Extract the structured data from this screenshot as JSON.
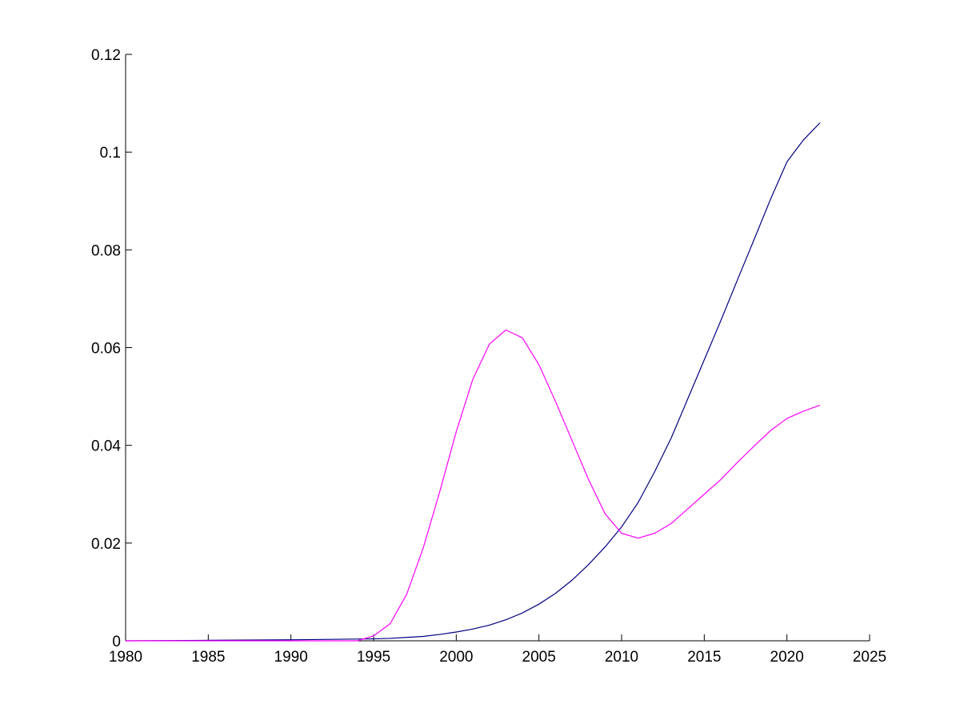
{
  "chart_data": {
    "type": "line",
    "title": "",
    "xlabel": "",
    "ylabel": "",
    "xlim": [
      1980,
      2025
    ],
    "ylim": [
      0,
      0.12
    ],
    "grid": false,
    "legend": "none",
    "x_ticks": [
      1980,
      1985,
      1990,
      1995,
      2000,
      2005,
      2010,
      2015,
      2020,
      2025
    ],
    "x_tick_labels": [
      "1980",
      "1985",
      "1990",
      "1995",
      "2000",
      "2005",
      "2010",
      "2015",
      "2020",
      "2025"
    ],
    "y_ticks": [
      0,
      0.02,
      0.04,
      0.06,
      0.08,
      0.1,
      0.12
    ],
    "y_tick_labels": [
      "0",
      "0.02",
      "0.04",
      "0.06",
      "0.08",
      "0.1",
      "0.12"
    ],
    "series": [
      {
        "color": "#000080",
        "x": [
          1980,
          1985,
          1990,
          1995,
          1996,
          1997,
          1998,
          1999,
          2000,
          2001,
          2002,
          2003,
          2004,
          2005,
          2006,
          2007,
          2008,
          2009,
          2010,
          2011,
          2012,
          2013,
          2014,
          2015,
          2016,
          2017,
          2018,
          2019,
          2020,
          2021,
          2022
        ],
        "y": [
          0,
          0.0001,
          0.0002,
          0.0004,
          0.0005,
          0.0007,
          0.0009,
          0.0013,
          0.0018,
          0.0024,
          0.0032,
          0.0043,
          0.0057,
          0.0075,
          0.0097,
          0.0124,
          0.0156,
          0.0192,
          0.0233,
          0.0283,
          0.0346,
          0.0415,
          0.0495,
          0.0575,
          0.0655,
          0.0738,
          0.082,
          0.0903,
          0.098,
          0.1025,
          0.106
        ]
      },
      {
        "color": "#FF00FF",
        "x": [
          1980,
          1985,
          1990,
          1994,
          1995,
          1996,
          1997,
          1998,
          1999,
          2000,
          2001,
          2002,
          2003,
          2004,
          2005,
          2006,
          2007,
          2008,
          2009,
          2010,
          2011,
          2012,
          2013,
          2014,
          2015,
          2016,
          2017,
          2018,
          2019,
          2020,
          2021,
          2022
        ],
        "y": [
          0,
          0,
          0,
          0,
          0.001,
          0.0035,
          0.0095,
          0.019,
          0.0305,
          0.0428,
          0.0535,
          0.0607,
          0.0636,
          0.062,
          0.0565,
          0.049,
          0.041,
          0.033,
          0.026,
          0.022,
          0.021,
          0.022,
          0.024,
          0.027,
          0.03,
          0.033,
          0.0365,
          0.0398,
          0.043,
          0.0455,
          0.047,
          0.0482
        ]
      }
    ]
  }
}
